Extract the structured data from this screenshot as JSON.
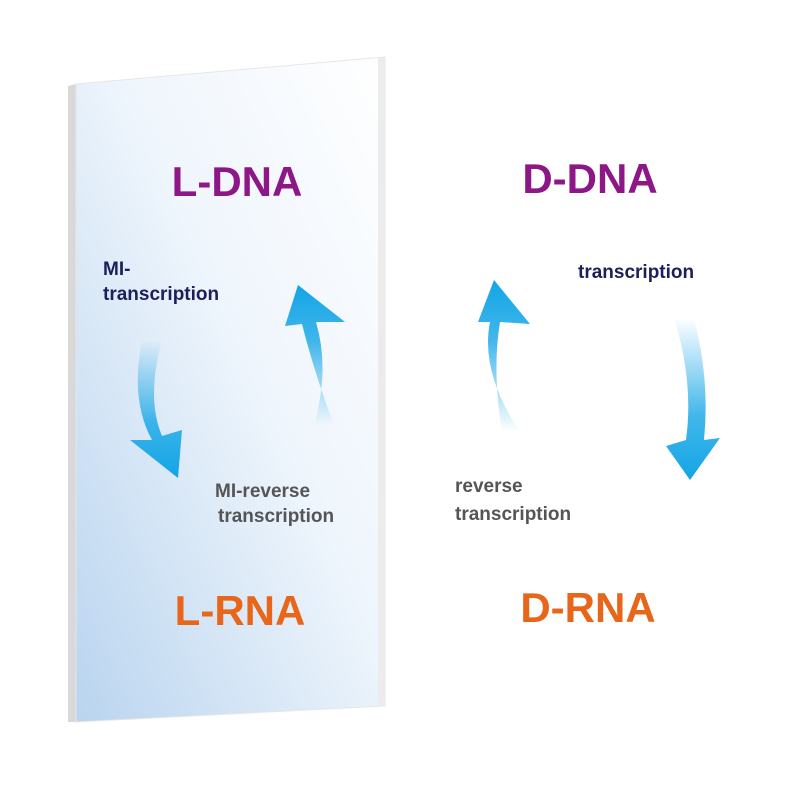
{
  "colors": {
    "dna": "#8e1787",
    "rna": "#e8661a",
    "forward_label": "#1c1f5a",
    "reverse_label": "#555555",
    "arrow": "#13a5e6"
  },
  "left_panel": {
    "dna": "L-DNA",
    "rna": "L-RNA",
    "forward_label_line1": "MI-",
    "forward_label_line2": "transcription",
    "reverse_label_line1": "MI-reverse",
    "reverse_label_line2": "transcription",
    "icons": [
      "arrow-down-curved-icon",
      "arrow-up-curved-icon"
    ]
  },
  "right_panel": {
    "dna": "D-DNA",
    "rna": "D-RNA",
    "forward_label": "transcription",
    "reverse_label_line1": "reverse",
    "reverse_label_line2": "transcription",
    "icons": [
      "arrow-up-curved-icon",
      "arrow-down-curved-icon"
    ]
  }
}
